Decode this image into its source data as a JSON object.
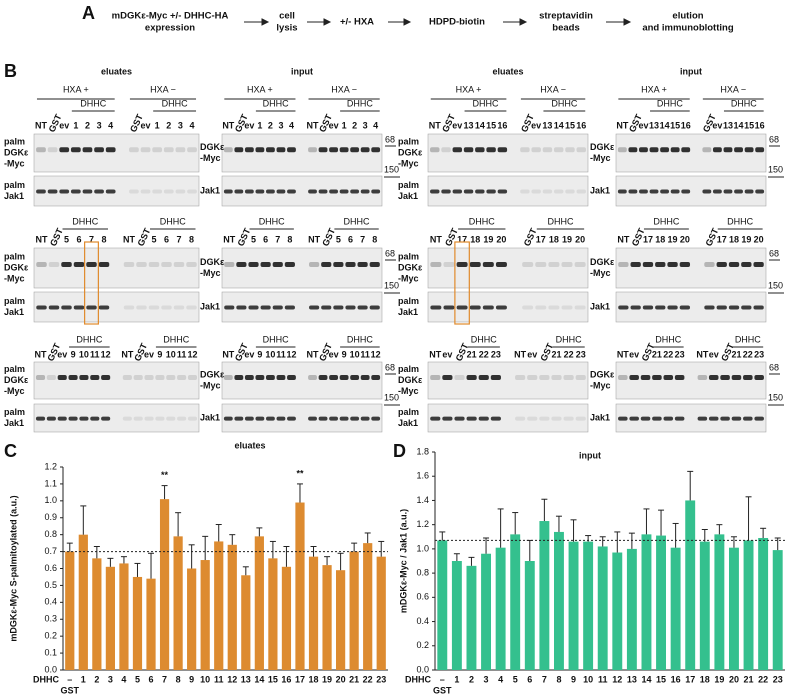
{
  "panel_a": {
    "label": "A",
    "steps": [
      [
        "mDGKε-Myc +/- DHHC-HA",
        "expression"
      ],
      [
        "cell",
        "lysis"
      ],
      [
        "+/- HXA"
      ],
      [
        "HDPD-biotin"
      ],
      [
        "streptavidin",
        "beads"
      ],
      [
        "elution",
        "and immunoblotting"
      ]
    ]
  },
  "panel_b": {
    "label": "B",
    "column_titles": [
      "eluates",
      "input",
      "eluates",
      "input"
    ],
    "hxa": [
      "HXA +",
      "HXA −"
    ],
    "dhhc": "DHHC",
    "eluate_rows": [
      [
        "palm",
        "DGKε",
        "-Myc"
      ],
      [
        "palm",
        "Jak1"
      ]
    ],
    "input_rows": [
      [
        "DGKε",
        "-Myc"
      ],
      [
        "Jak1"
      ]
    ],
    "markers": [
      "68",
      "150"
    ],
    "blocks": [
      [
        {
          "left": [
            "NT",
            "GST",
            "ev",
            "1",
            "2",
            "3",
            "4"
          ],
          "right": [
            "GST",
            "ev",
            "1",
            "2",
            "3",
            "4"
          ]
        },
        {
          "left": [
            "NT",
            "GST",
            "ev",
            "1",
            "2",
            "3",
            "4"
          ],
          "right": [
            "NT",
            "GST",
            "ev",
            "1",
            "2",
            "3",
            "4"
          ]
        },
        {
          "left": [
            "NT",
            "GST",
            "ev",
            "13",
            "14",
            "15",
            "16"
          ],
          "right": [
            "GST",
            "ev",
            "13",
            "14",
            "15",
            "16"
          ]
        },
        {
          "left": [
            "NT",
            "GST",
            "ev",
            "13",
            "14",
            "15",
            "16"
          ],
          "right": [
            "GST",
            "ev",
            "13",
            "14",
            "15",
            "16"
          ]
        }
      ],
      [
        {
          "left": [
            "NT",
            "GST",
            "5",
            "6",
            "7",
            "8"
          ],
          "right": [
            "NT",
            "GST",
            "5",
            "6",
            "7",
            "8"
          ]
        },
        {
          "left": [
            "NT",
            "GST",
            "5",
            "6",
            "7",
            "8"
          ],
          "right": [
            "NT",
            "GST",
            "5",
            "6",
            "7",
            "8"
          ]
        },
        {
          "left": [
            "NT",
            "GST",
            "17",
            "18",
            "19",
            "20"
          ],
          "right": [
            "GST",
            "17",
            "18",
            "19",
            "20"
          ]
        },
        {
          "left": [
            "NT",
            "GST",
            "17",
            "18",
            "19",
            "20"
          ],
          "right": [
            "GST",
            "17",
            "18",
            "19",
            "20"
          ]
        }
      ],
      [
        {
          "left": [
            "NT",
            "GST",
            "ev",
            "9",
            "10",
            "11",
            "12"
          ],
          "right": [
            "NT",
            "GST",
            "ev",
            "9",
            "10",
            "11",
            "12"
          ]
        },
        {
          "left": [
            "NT",
            "GST",
            "ev",
            "9",
            "10",
            "11",
            "12"
          ],
          "right": [
            "NT",
            "GST",
            "ev",
            "9",
            "10",
            "11",
            "12"
          ]
        },
        {
          "left": [
            "NT",
            "ev",
            "GST",
            "21",
            "22",
            "23"
          ],
          "right": [
            "NT",
            "ev",
            "GST",
            "21",
            "22",
            "23"
          ]
        },
        {
          "left": [
            "NT",
            "ev",
            "GST",
            "21",
            "22",
            "23"
          ],
          "right": [
            "NT",
            "ev",
            "GST",
            "21",
            "22",
            "23"
          ]
        }
      ]
    ]
  },
  "chart_data": [
    {
      "type": "bar",
      "label": "C",
      "title": "eluates",
      "y_label": "mDGKε-Myc S-palmitoylated (a.u.)",
      "x_label": "DHHC",
      "control_label": "GST",
      "categories": [
        "–",
        "1",
        "2",
        "3",
        "4",
        "5",
        "6",
        "7",
        "8",
        "9",
        "10",
        "11",
        "12",
        "13",
        "14",
        "15",
        "16",
        "17",
        "18",
        "19",
        "20",
        "21",
        "22",
        "23"
      ],
      "values": [
        0.7,
        0.8,
        0.66,
        0.61,
        0.63,
        0.55,
        0.54,
        1.01,
        0.79,
        0.6,
        0.65,
        0.76,
        0.74,
        0.56,
        0.79,
        0.66,
        0.61,
        0.99,
        0.67,
        0.62,
        0.59,
        0.7,
        0.75,
        0.67
      ],
      "errors": [
        0.05,
        0.17,
        0.07,
        0.05,
        0.04,
        0.08,
        0.15,
        0.08,
        0.14,
        0.14,
        0.14,
        0.1,
        0.06,
        0.05,
        0.05,
        0.1,
        0.12,
        0.11,
        0.06,
        0.05,
        0.1,
        0.05,
        0.06,
        0.09
      ],
      "color": "#dd8b30",
      "ylim": [
        0,
        1.2
      ],
      "yticks": [
        {
          "value": 0,
          "label": "0.0"
        },
        0.1,
        0.2,
        0.3,
        0.4,
        0.5,
        0.6,
        0.7,
        0.8,
        0.9,
        {
          "value": 1,
          "label": "1.0"
        },
        1.1,
        1.2
      ],
      "reference_line": 0.7,
      "annotations": [
        {
          "text": "**",
          "category": "7"
        },
        {
          "text": "**",
          "category": "17"
        }
      ]
    },
    {
      "type": "bar",
      "label": "D",
      "title": "input",
      "y_label": "mDGKε-Myc / Jak1 (a.u.)",
      "x_label": "DHHC",
      "control_label": "GST",
      "categories": [
        "–",
        "1",
        "2",
        "3",
        "4",
        "5",
        "6",
        "7",
        "8",
        "9",
        "10",
        "11",
        "12",
        "13",
        "14",
        "15",
        "16",
        "17",
        "18",
        "19",
        "20",
        "21",
        "22",
        "23"
      ],
      "values": [
        1.07,
        0.9,
        0.86,
        0.96,
        1.01,
        1.12,
        0.9,
        1.23,
        1.14,
        1.06,
        1.06,
        1.02,
        0.97,
        1.0,
        1.12,
        1.11,
        1.01,
        1.4,
        1.06,
        1.12,
        1.01,
        1.07,
        1.09,
        0.99
      ],
      "errors": [
        0.07,
        0.06,
        0.07,
        0.13,
        0.32,
        0.18,
        0.17,
        0.18,
        0.13,
        0.18,
        0.05,
        0.08,
        0.17,
        0.13,
        0.21,
        0.21,
        0.2,
        0.24,
        0.1,
        0.08,
        0.09,
        0.36,
        0.08,
        0.1
      ],
      "color": "#34c08e",
      "ylim": [
        0,
        1.8
      ],
      "yticks": [
        {
          "value": 0,
          "label": "0.0"
        },
        0.2,
        0.4,
        0.6,
        0.8,
        {
          "value": 1,
          "label": "1.0"
        },
        1.2,
        1.4,
        1.6,
        1.8
      ],
      "reference_line": 1.07,
      "annotations": []
    }
  ]
}
